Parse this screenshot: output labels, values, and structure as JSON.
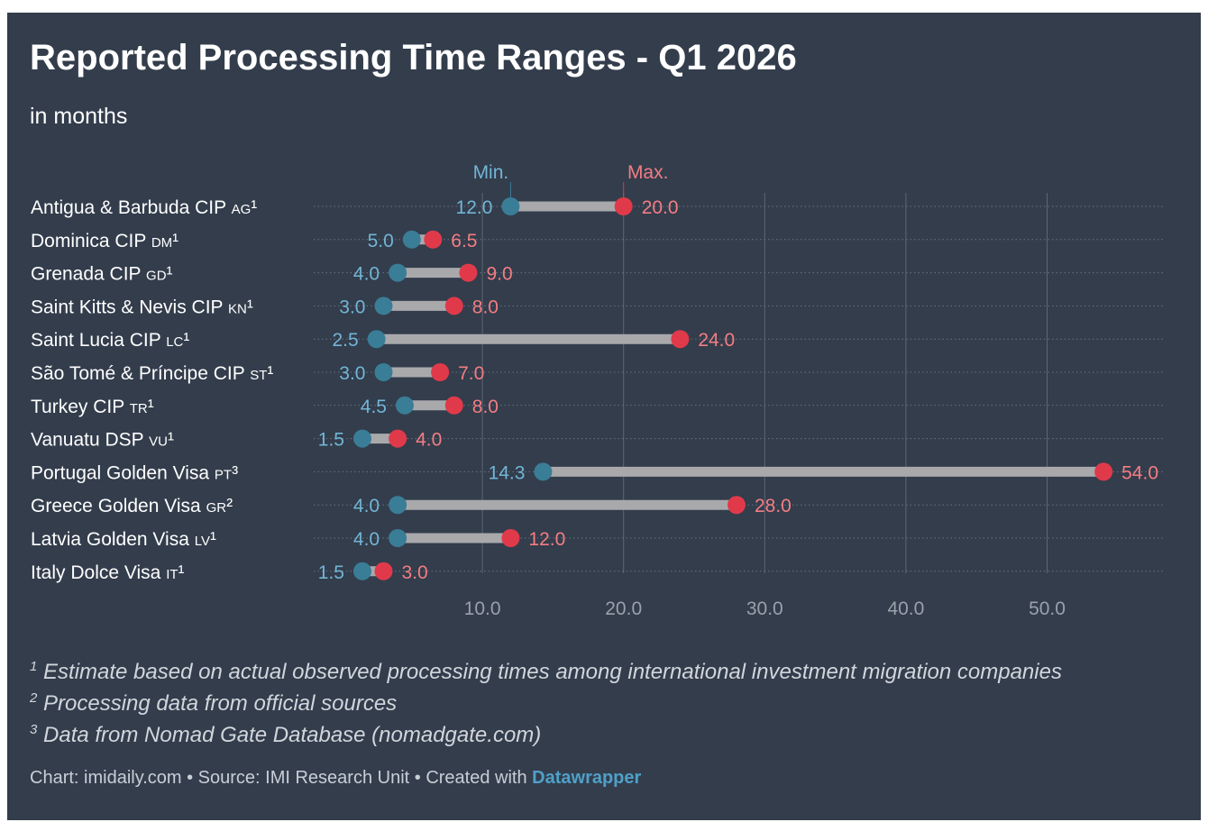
{
  "title": "Reported Processing Time Ranges - Q1 2026",
  "subtitle": "in months",
  "colors": {
    "background": "#333d4c",
    "min_dot": "#3a7d96",
    "min_text": "#72b5d6",
    "max_dot": "#e03a4a",
    "max_text": "#f47d83",
    "bar": "#a9a9ac",
    "grid": "#5e6675",
    "axis_text": "#9aa1ab"
  },
  "chart_data": {
    "type": "range-dot",
    "legend": {
      "min": "Min.",
      "max": "Max."
    },
    "xlim": [
      0,
      58
    ],
    "x_ticks": [
      10,
      20,
      30,
      40,
      50
    ],
    "x_tick_labels": [
      "10.0",
      "20.0",
      "30.0",
      "40.0",
      "50.0"
    ],
    "grid": true,
    "rows": [
      {
        "name": "Antigua & Barbuda CIP",
        "code": "AG",
        "note": "¹",
        "min": 12.0,
        "max": 20.0,
        "min_label": "12.0",
        "max_label": "20.0"
      },
      {
        "name": "Dominica CIP",
        "code": "DM",
        "note": "¹",
        "min": 5.0,
        "max": 6.5,
        "min_label": "5.0",
        "max_label": "6.5"
      },
      {
        "name": "Grenada CIP",
        "code": "GD",
        "note": "¹",
        "min": 4.0,
        "max": 9.0,
        "min_label": "4.0",
        "max_label": "9.0"
      },
      {
        "name": "Saint Kitts & Nevis CIP",
        "code": "KN",
        "note": "¹",
        "min": 3.0,
        "max": 8.0,
        "min_label": "3.0",
        "max_label": "8.0"
      },
      {
        "name": "Saint Lucia CIP",
        "code": "LC",
        "note": "¹",
        "min": 2.5,
        "max": 24.0,
        "min_label": "2.5",
        "max_label": "24.0"
      },
      {
        "name": "São Tomé & Príncipe CIP",
        "code": "ST",
        "note": "¹",
        "min": 3.0,
        "max": 7.0,
        "min_label": "3.0",
        "max_label": "7.0"
      },
      {
        "name": "Turkey CIP",
        "code": "TR",
        "note": "¹",
        "min": 4.5,
        "max": 8.0,
        "min_label": "4.5",
        "max_label": "8.0"
      },
      {
        "name": "Vanuatu DSP",
        "code": "VU",
        "note": "¹",
        "min": 1.5,
        "max": 4.0,
        "min_label": "1.5",
        "max_label": "4.0"
      },
      {
        "name": "Portugal Golden Visa",
        "code": "PT",
        "note": "³",
        "min": 14.3,
        "max": 54.0,
        "min_label": "14.3",
        "max_label": "54.0"
      },
      {
        "name": "Greece Golden Visa",
        "code": "GR",
        "note": "²",
        "min": 4.0,
        "max": 28.0,
        "min_label": "4.0",
        "max_label": "28.0"
      },
      {
        "name": "Latvia Golden Visa",
        "code": "LV",
        "note": "¹",
        "min": 4.0,
        "max": 12.0,
        "min_label": "4.0",
        "max_label": "12.0"
      },
      {
        "name": "Italy Dolce Visa",
        "code": "IT",
        "note": "¹",
        "min": 1.5,
        "max": 3.0,
        "min_label": "1.5",
        "max_label": "3.0"
      }
    ]
  },
  "footnotes": [
    {
      "mark": "1",
      "text": " Estimate based on actual observed processing times among international investment migration companies"
    },
    {
      "mark": "2",
      "text": " Processing data from official sources"
    },
    {
      "mark": "3",
      "text": " Data from Nomad Gate Database (nomadgate.com)"
    }
  ],
  "credits": {
    "text": "Chart: imidaily.com • Source: IMI Research Unit • Created with ",
    "tool": "Datawrapper"
  }
}
